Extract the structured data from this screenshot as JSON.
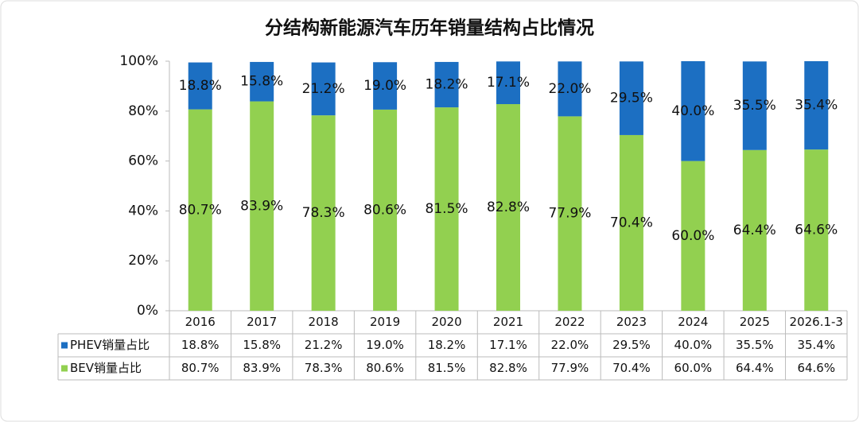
{
  "chart_data": {
    "type": "stacked_bar",
    "title": "分结构新能源汽车历年销量结构占比情况",
    "categories": [
      "2016",
      "2017",
      "2018",
      "2019",
      "2020",
      "2021",
      "2022",
      "2023",
      "2024",
      "2025",
      "2026.1-3"
    ],
    "series": [
      {
        "name": "BEV销量占比",
        "color": "#92d050",
        "values": [
          80.7,
          83.9,
          78.3,
          80.6,
          81.5,
          82.8,
          77.9,
          70.4,
          60.0,
          64.4,
          64.6
        ],
        "value_labels": [
          "80.7%",
          "83.9%",
          "78.3%",
          "80.6%",
          "81.5%",
          "82.8%",
          "77.9%",
          "70.4%",
          "60.0%",
          "64.4%",
          "64.6%"
        ]
      },
      {
        "name": "PHEV销量占比",
        "color": "#1c6fc2",
        "values": [
          18.8,
          15.8,
          21.2,
          19.0,
          18.2,
          17.1,
          22.0,
          29.5,
          40.0,
          35.5,
          35.4
        ],
        "value_labels": [
          "18.8%",
          "15.8%",
          "21.2%",
          "19.0%",
          "18.2%",
          "17.1%",
          "22.0%",
          "29.5%",
          "40.0%",
          "35.5%",
          "35.4%"
        ]
      }
    ],
    "ylim": [
      0,
      100
    ],
    "yticks": [
      {
        "value": 0,
        "label": "0%"
      },
      {
        "value": 20,
        "label": "20%"
      },
      {
        "value": 40,
        "label": "40%"
      },
      {
        "value": 60,
        "label": "60%"
      },
      {
        "value": 80,
        "label": "80%"
      },
      {
        "value": 100,
        "label": "100%"
      }
    ],
    "grid": false
  }
}
